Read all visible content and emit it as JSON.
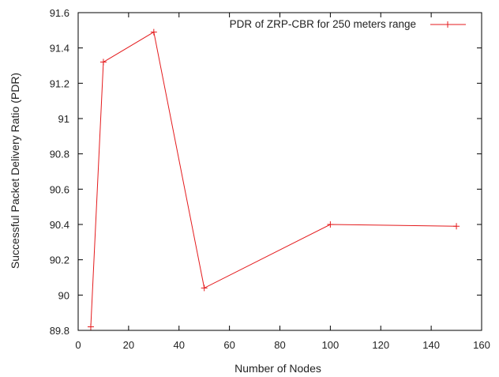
{
  "chart_data": {
    "type": "line",
    "title": "",
    "xlabel": "Number of Nodes",
    "ylabel": "Successful Packet Delivery Ratio (PDR)",
    "xlim": [
      0,
      160
    ],
    "ylim": [
      89.8,
      91.6
    ],
    "xticks": [
      "0",
      "20",
      "40",
      "60",
      "80",
      "100",
      "120",
      "140",
      "160"
    ],
    "yticks": [
      "89.8",
      "90",
      "90.2",
      "90.4",
      "90.6",
      "90.8",
      "91",
      "91.2",
      "91.4",
      "91.6"
    ],
    "grid": false,
    "legend_position": "top-right",
    "series": [
      {
        "name": "PDR of ZRP-CBR for 250 meters range",
        "color": "#e41a1c",
        "marker": "plus",
        "x": [
          5,
          10,
          30,
          50,
          100,
          150
        ],
        "y": [
          89.82,
          91.32,
          91.49,
          90.04,
          90.4,
          90.39
        ]
      }
    ]
  }
}
